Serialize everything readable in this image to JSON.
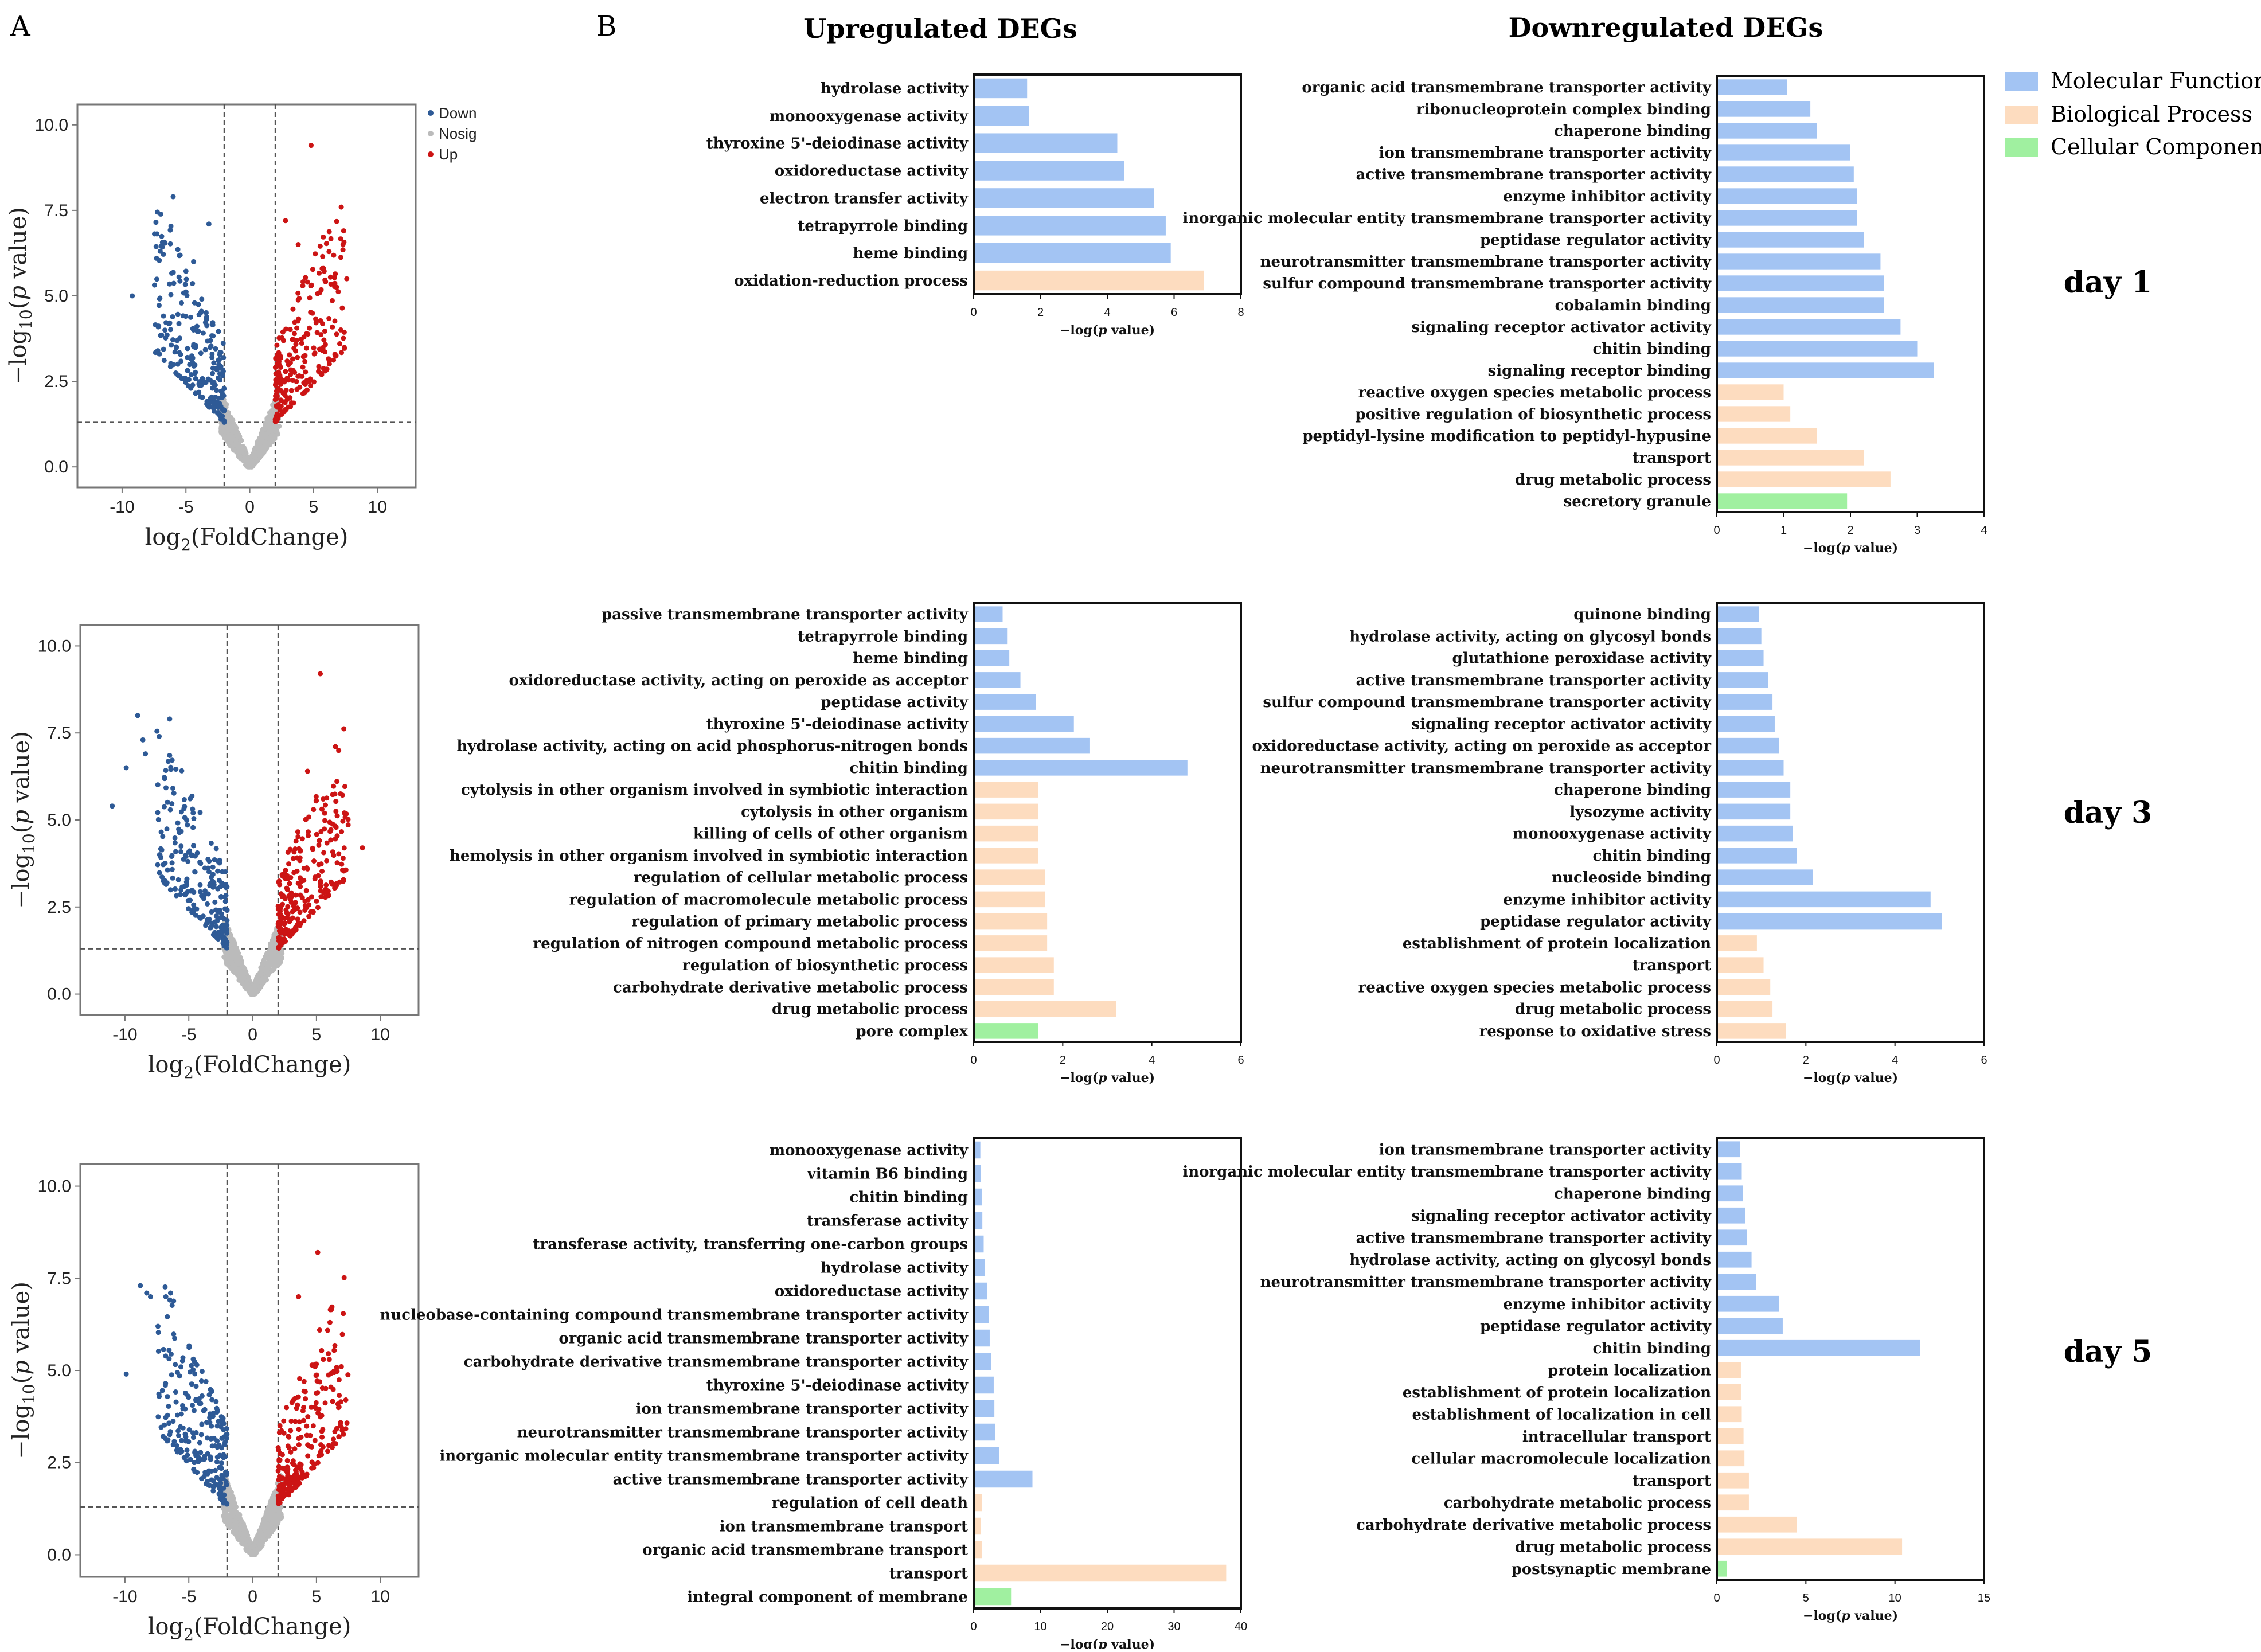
{
  "figure": {
    "panel_a_label": "A",
    "panel_b_label": "B",
    "col_titles": [
      "Upregulated DEGs",
      "Downregulated DEGs"
    ],
    "day_labels": [
      "day 1",
      "day 3",
      "day 5"
    ],
    "legend": [
      {
        "label": "Molecular Function",
        "color": "#a3c4f3"
      },
      {
        "label": "Biological Process",
        "color": "#fddcbf"
      },
      {
        "label": "Cellular Component",
        "color": "#a0f0a0"
      }
    ],
    "colors": {
      "MF": "#a3c4f3",
      "BP": "#fddcbf",
      "CC": "#a0f0a0",
      "down": "#2e5a96",
      "nosig": "#bbbbbb",
      "up": "#cc1414"
    }
  },
  "chart_data": [
    {
      "type": "scatter",
      "id": "volcano-day1",
      "title": "",
      "xlabel": "log2(FoldChange)",
      "ylabel": "-log10(p value)",
      "xlim": [
        -13.5,
        13
      ],
      "ylim": [
        -0.6,
        10.6
      ],
      "xticks": [
        -10,
        -5,
        0,
        5,
        10
      ],
      "yticks": [
        0.0,
        2.5,
        5.0,
        7.5,
        10.0
      ],
      "ytick_labels": [
        "0.0",
        "2.5",
        "5.0",
        "7.5",
        "10.0"
      ],
      "thresholds": {
        "log2fc": 2,
        "neg_log10_p": 1.3
      },
      "legend": [
        "Down",
        "Nosig",
        "Up"
      ],
      "spread": 4.6,
      "outliers": {
        "down": [
          [
            -6,
            7.9
          ],
          [
            -3.2,
            7.1
          ],
          [
            -4.4,
            6.0
          ],
          [
            -7.3,
            6.1
          ],
          [
            -9.2,
            5.0
          ]
        ],
        "up": [
          [
            4.8,
            9.4
          ],
          [
            2.8,
            7.2
          ],
          [
            7.6,
            5.5
          ],
          [
            3.8,
            6.5
          ]
        ]
      }
    },
    {
      "type": "scatter",
      "id": "volcano-day3",
      "title": "",
      "xlabel": "log2(FoldChange)",
      "ylabel": "-log10(p value)",
      "xlim": [
        -13.5,
        13
      ],
      "ylim": [
        -0.6,
        10.6
      ],
      "xticks": [
        -10,
        -5,
        0,
        5,
        10
      ],
      "yticks": [
        0.0,
        2.5,
        5.0,
        7.5,
        10.0
      ],
      "ytick_labels": [
        "0.0",
        "2.5",
        "5.0",
        "7.5",
        "10.0"
      ],
      "thresholds": {
        "log2fc": 2,
        "neg_log10_p": 1.3
      },
      "legend": [],
      "spread": 4.4,
      "outliers": {
        "down": [
          [
            -9,
            8.0
          ],
          [
            -8.6,
            7.3
          ],
          [
            -6.5,
            7.9
          ],
          [
            -9.9,
            6.5
          ],
          [
            -11,
            5.4
          ],
          [
            -8.4,
            6.9
          ]
        ],
        "up": [
          [
            5.3,
            9.2
          ],
          [
            8.6,
            4.2
          ],
          [
            4.3,
            6.4
          ]
        ]
      }
    },
    {
      "type": "scatter",
      "id": "volcano-day5",
      "title": "",
      "xlabel": "log2(FoldChange)",
      "ylabel": "-log10(p value)",
      "xlim": [
        -13.5,
        13
      ],
      "ylim": [
        -0.6,
        10.6
      ],
      "xticks": [
        -10,
        -5,
        0,
        5,
        10
      ],
      "yticks": [
        0.0,
        2.5,
        5.0,
        7.5,
        10.0
      ],
      "ytick_labels": [
        "0.0",
        "2.5",
        "5.0",
        "7.5",
        "10.0"
      ],
      "thresholds": {
        "log2fc": 2,
        "neg_log10_p": 1.3
      },
      "legend": [],
      "spread": 4.4,
      "outliers": {
        "down": [
          [
            -8.8,
            7.3
          ],
          [
            -8,
            7.0
          ],
          [
            -6.8,
            7.0
          ],
          [
            -9.9,
            4.9
          ],
          [
            -8.3,
            7.1
          ]
        ],
        "up": [
          [
            5.1,
            8.2
          ],
          [
            3.6,
            7.0
          ],
          [
            7.3,
            4.2
          ]
        ]
      }
    },
    {
      "type": "bar",
      "id": "up-day1",
      "xlabel": "−log(p value)",
      "xlim": [
        0,
        8
      ],
      "xticks": [
        0,
        2,
        4,
        6,
        8
      ],
      "categories": [
        "hydrolase activity",
        "monooxygenase activity",
        "thyroxine 5'-deiodinase activity",
        "oxidoreductase activity",
        "electron transfer activity",
        "tetrapyrrole binding",
        "heme binding",
        "oxidation-reduction process"
      ],
      "values": [
        1.6,
        1.65,
        4.3,
        4.5,
        5.4,
        5.75,
        5.9,
        6.9
      ],
      "groups": [
        "MF",
        "MF",
        "MF",
        "MF",
        "MF",
        "MF",
        "MF",
        "BP"
      ]
    },
    {
      "type": "bar",
      "id": "down-day1",
      "xlabel": "−log(p value)",
      "xlim": [
        0,
        4
      ],
      "xticks": [
        0,
        1,
        2,
        3,
        4
      ],
      "categories": [
        "organic acid transmembrane transporter activity",
        "ribonucleoprotein complex binding",
        "chaperone binding",
        "ion transmembrane transporter activity",
        "active transmembrane transporter activity",
        "enzyme inhibitor activity",
        "inorganic molecular entity transmembrane transporter activity",
        "peptidase regulator activity",
        "neurotransmitter transmembrane transporter activity",
        "sulfur compound transmembrane transporter activity",
        "cobalamin binding",
        "signaling receptor activator activity",
        "chitin binding",
        "signaling receptor binding",
        "reactive oxygen species metabolic process",
        "positive regulation of biosynthetic process",
        "peptidyl-lysine modification to peptidyl-hypusine",
        "transport",
        "drug metabolic process",
        "secretory granule"
      ],
      "values": [
        1.05,
        1.4,
        1.5,
        2.0,
        2.05,
        2.1,
        2.1,
        2.2,
        2.45,
        2.5,
        2.5,
        2.75,
        3.0,
        3.25,
        1.0,
        1.1,
        1.5,
        2.2,
        2.6,
        1.95
      ],
      "groups": [
        "MF",
        "MF",
        "MF",
        "MF",
        "MF",
        "MF",
        "MF",
        "MF",
        "MF",
        "MF",
        "MF",
        "MF",
        "MF",
        "MF",
        "BP",
        "BP",
        "BP",
        "BP",
        "BP",
        "CC"
      ]
    },
    {
      "type": "bar",
      "id": "up-day3",
      "xlabel": "−log(p value)",
      "xlim": [
        0,
        6
      ],
      "xticks": [
        0,
        2,
        4,
        6
      ],
      "categories": [
        "passive transmembrane transporter activity",
        "tetrapyrrole binding",
        "heme binding",
        "oxidoreductase activity, acting on peroxide as acceptor",
        "peptidase activity",
        "thyroxine 5'-deiodinase activity",
        "hydrolase activity, acting on acid phosphorus-nitrogen bonds",
        "chitin binding",
        "cytolysis in other organism involved in symbiotic interaction",
        "cytolysis in other organism",
        "killing of cells of other organism",
        "hemolysis in other organism involved in symbiotic interaction",
        "regulation of cellular metabolic process",
        "regulation of macromolecule metabolic process",
        "regulation of primary metabolic process",
        "regulation of nitrogen compound metabolic process",
        "regulation of biosynthetic process",
        "carbohydrate derivative metabolic process",
        "drug metabolic process",
        "pore complex"
      ],
      "values": [
        0.65,
        0.75,
        0.8,
        1.05,
        1.4,
        2.25,
        2.6,
        4.8,
        1.45,
        1.45,
        1.45,
        1.45,
        1.6,
        1.6,
        1.65,
        1.65,
        1.8,
        1.8,
        3.2,
        1.45
      ],
      "groups": [
        "MF",
        "MF",
        "MF",
        "MF",
        "MF",
        "MF",
        "MF",
        "MF",
        "BP",
        "BP",
        "BP",
        "BP",
        "BP",
        "BP",
        "BP",
        "BP",
        "BP",
        "BP",
        "BP",
        "CC"
      ]
    },
    {
      "type": "bar",
      "id": "down-day3",
      "xlabel": "−log(p value)",
      "xlim": [
        0,
        6
      ],
      "xticks": [
        0,
        2,
        4,
        6
      ],
      "categories": [
        "quinone binding",
        "hydrolase activity, acting on glycosyl bonds",
        "glutathione peroxidase activity",
        "active transmembrane transporter activity",
        "sulfur compound transmembrane transporter activity",
        "signaling receptor activator activity",
        "oxidoreductase activity, acting on peroxide as acceptor",
        "neurotransmitter transmembrane transporter activity",
        "chaperone binding",
        "lysozyme activity",
        "monooxygenase activity",
        "chitin binding",
        "nucleoside binding",
        "enzyme inhibitor activity",
        "peptidase regulator activity",
        "establishment of protein localization",
        "transport",
        "reactive oxygen species metabolic process",
        "drug metabolic process",
        "response to oxidative stress"
      ],
      "values": [
        0.95,
        1.0,
        1.05,
        1.15,
        1.25,
        1.3,
        1.4,
        1.5,
        1.65,
        1.65,
        1.7,
        1.8,
        2.15,
        4.8,
        5.05,
        0.9,
        1.05,
        1.2,
        1.25,
        1.55
      ],
      "groups": [
        "MF",
        "MF",
        "MF",
        "MF",
        "MF",
        "MF",
        "MF",
        "MF",
        "MF",
        "MF",
        "MF",
        "MF",
        "MF",
        "MF",
        "MF",
        "BP",
        "BP",
        "BP",
        "BP",
        "BP"
      ]
    },
    {
      "type": "bar",
      "id": "up-day5",
      "xlabel": "−log(p value)",
      "xlim": [
        0,
        40
      ],
      "xticks": [
        0,
        10,
        20,
        30,
        40
      ],
      "categories": [
        "monooxygenase activity",
        "vitamin B6 binding",
        "chitin binding",
        "transferase activity",
        "transferase activity, transferring one-carbon groups",
        "hydrolase activity",
        "oxidoreductase activity",
        "nucleobase-containing compound transmembrane transporter activity",
        "organic acid transmembrane transporter activity",
        "carbohydrate derivative transmembrane transporter activity",
        "thyroxine 5'-deiodinase activity",
        "ion transmembrane transporter activity",
        "neurotransmitter transmembrane transporter activity",
        "inorganic molecular entity transmembrane transporter activity",
        "active transmembrane transporter activity",
        "regulation of cell death",
        "ion transmembrane transport",
        "organic acid transmembrane transport",
        "transport",
        "integral component of membrane"
      ],
      "values": [
        1.0,
        1.1,
        1.2,
        1.3,
        1.5,
        1.7,
        2.0,
        2.3,
        2.4,
        2.6,
        3.0,
        3.1,
        3.2,
        3.8,
        8.8,
        1.2,
        1.1,
        1.2,
        37.8,
        5.6
      ],
      "groups": [
        "MF",
        "MF",
        "MF",
        "MF",
        "MF",
        "MF",
        "MF",
        "MF",
        "MF",
        "MF",
        "MF",
        "MF",
        "MF",
        "MF",
        "MF",
        "BP",
        "BP",
        "BP",
        "BP",
        "CC"
      ]
    },
    {
      "type": "bar",
      "id": "down-day5",
      "xlabel": "−log(p value)",
      "xlim": [
        0,
        15
      ],
      "xticks": [
        0,
        5,
        10,
        15
      ],
      "categories": [
        "ion transmembrane transporter activity",
        "inorganic molecular entity transmembrane transporter activity",
        "chaperone binding",
        "signaling receptor activator activity",
        "active transmembrane transporter activity",
        "hydrolase activity, acting on glycosyl bonds",
        "neurotransmitter transmembrane transporter activity",
        "enzyme inhibitor activity",
        "peptidase regulator activity",
        "chitin binding",
        "protein localization",
        "establishment of protein localization",
        "establishment of localization in cell",
        "intracellular transport",
        "cellular macromolecule localization",
        "transport",
        "carbohydrate metabolic process",
        "carbohydrate derivative metabolic process",
        "drug metabolic process",
        "postsynaptic membrane"
      ],
      "values": [
        1.3,
        1.4,
        1.45,
        1.6,
        1.7,
        1.95,
        2.2,
        3.5,
        3.7,
        11.4,
        1.35,
        1.35,
        1.4,
        1.5,
        1.55,
        1.8,
        1.8,
        4.5,
        10.4,
        0.55
      ],
      "groups": [
        "MF",
        "MF",
        "MF",
        "MF",
        "MF",
        "MF",
        "MF",
        "MF",
        "MF",
        "MF",
        "BP",
        "BP",
        "BP",
        "BP",
        "BP",
        "BP",
        "BP",
        "BP",
        "BP",
        "CC"
      ]
    }
  ]
}
